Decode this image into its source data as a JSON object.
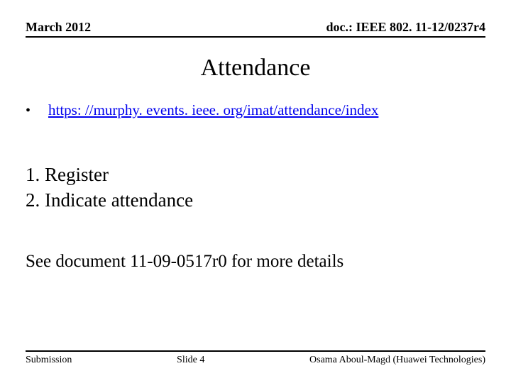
{
  "header": {
    "date": "March 2012",
    "doc": "doc.: IEEE 802. 11-12/0237r4"
  },
  "title": "Attendance",
  "bullet": {
    "mark": "•",
    "link_text": "https: //murphy. events. ieee. org/imat/attendance/index"
  },
  "steps": {
    "line1": "1. Register",
    "line2": "2. Indicate attendance"
  },
  "note": "See document 11-09-0517r0 for more details",
  "footer": {
    "left": "Submission",
    "mid": "Slide 4",
    "right": "Osama Aboul-Magd (Huawei Technologies)"
  },
  "colors": {
    "link": "#0000ee",
    "text": "#000000",
    "background": "#ffffff"
  }
}
